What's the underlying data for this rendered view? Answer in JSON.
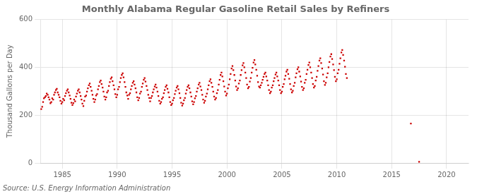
{
  "chart_data": {
    "type": "scatter",
    "title": "Monthly Alabama Regular Gasoline Retail Sales by Refiners",
    "ylabel": "Thousand Gallons per Day",
    "source": "Source: U.S. Energy Information Administration",
    "color": "#cc0000",
    "marker": "square",
    "grid": true,
    "xlim": [
      1983.0,
      2022.0
    ],
    "ylim": [
      0,
      600
    ],
    "xticks": [
      1985,
      1990,
      1995,
      2000,
      2005,
      2010,
      2015,
      2020
    ],
    "yticks": [
      0,
      200,
      400,
      600
    ],
    "x": [
      1983.08,
      1983.17,
      1983.25,
      1983.33,
      1983.42,
      1983.5,
      1983.58,
      1983.67,
      1983.75,
      1983.83,
      1983.92,
      1984.0,
      1984.08,
      1984.17,
      1984.25,
      1984.33,
      1984.42,
      1984.5,
      1984.58,
      1984.67,
      1984.75,
      1984.83,
      1984.92,
      1985.0,
      1985.08,
      1985.17,
      1985.25,
      1985.33,
      1985.42,
      1985.5,
      1985.58,
      1985.67,
      1985.75,
      1985.83,
      1985.92,
      1986.0,
      1986.08,
      1986.17,
      1986.25,
      1986.33,
      1986.42,
      1986.5,
      1986.58,
      1986.67,
      1986.75,
      1986.83,
      1986.92,
      1987.0,
      1987.08,
      1987.17,
      1987.25,
      1987.33,
      1987.42,
      1987.5,
      1987.58,
      1987.67,
      1987.75,
      1987.83,
      1987.92,
      1988.0,
      1988.08,
      1988.17,
      1988.25,
      1988.33,
      1988.42,
      1988.5,
      1988.58,
      1988.67,
      1988.75,
      1988.83,
      1988.92,
      1989.0,
      1989.08,
      1989.17,
      1989.25,
      1989.33,
      1989.42,
      1989.5,
      1989.58,
      1989.67,
      1989.75,
      1989.83,
      1989.92,
      1990.0,
      1990.08,
      1990.17,
      1990.25,
      1990.33,
      1990.42,
      1990.5,
      1990.58,
      1990.67,
      1990.75,
      1990.83,
      1990.92,
      1991.0,
      1991.08,
      1991.17,
      1991.25,
      1991.33,
      1991.42,
      1991.5,
      1991.58,
      1991.67,
      1991.75,
      1991.83,
      1991.92,
      1992.0,
      1992.08,
      1992.17,
      1992.25,
      1992.33,
      1992.42,
      1992.5,
      1992.58,
      1992.67,
      1992.75,
      1992.83,
      1992.92,
      1993.0,
      1993.08,
      1993.17,
      1993.25,
      1993.33,
      1993.42,
      1993.5,
      1993.58,
      1993.67,
      1993.75,
      1993.83,
      1993.92,
      1994.0,
      1994.08,
      1994.17,
      1994.25,
      1994.33,
      1994.42,
      1994.5,
      1994.58,
      1994.67,
      1994.75,
      1994.83,
      1994.92,
      1995.0,
      1995.08,
      1995.17,
      1995.25,
      1995.33,
      1995.42,
      1995.5,
      1995.58,
      1995.67,
      1995.75,
      1995.83,
      1995.92,
      1996.0,
      1996.08,
      1996.17,
      1996.25,
      1996.33,
      1996.42,
      1996.5,
      1996.58,
      1996.67,
      1996.75,
      1996.83,
      1996.92,
      1997.0,
      1997.08,
      1997.17,
      1997.25,
      1997.33,
      1997.42,
      1997.5,
      1997.58,
      1997.67,
      1997.75,
      1997.83,
      1997.92,
      1998.0,
      1998.08,
      1998.17,
      1998.25,
      1998.33,
      1998.42,
      1998.5,
      1998.58,
      1998.67,
      1998.75,
      1998.83,
      1998.92,
      1999.0,
      1999.08,
      1999.17,
      1999.25,
      1999.33,
      1999.42,
      1999.5,
      1999.58,
      1999.67,
      1999.75,
      1999.83,
      1999.92,
      2000.0,
      2000.08,
      2000.17,
      2000.25,
      2000.33,
      2000.42,
      2000.5,
      2000.58,
      2000.67,
      2000.75,
      2000.83,
      2000.92,
      2001.0,
      2001.08,
      2001.17,
      2001.25,
      2001.33,
      2001.42,
      2001.5,
      2001.58,
      2001.67,
      2001.75,
      2001.83,
      2001.92,
      2002.0,
      2002.08,
      2002.17,
      2002.25,
      2002.33,
      2002.42,
      2002.5,
      2002.58,
      2002.67,
      2002.75,
      2002.83,
      2002.92,
      2003.0,
      2003.08,
      2003.17,
      2003.25,
      2003.33,
      2003.42,
      2003.5,
      2003.58,
      2003.67,
      2003.75,
      2003.83,
      2003.92,
      2004.0,
      2004.08,
      2004.17,
      2004.25,
      2004.33,
      2004.42,
      2004.5,
      2004.58,
      2004.67,
      2004.75,
      2004.83,
      2004.92,
      2005.0,
      2005.08,
      2005.17,
      2005.25,
      2005.33,
      2005.42,
      2005.5,
      2005.58,
      2005.67,
      2005.75,
      2005.83,
      2005.92,
      2006.0,
      2006.08,
      2006.17,
      2006.25,
      2006.33,
      2006.42,
      2006.5,
      2006.58,
      2006.67,
      2006.75,
      2006.83,
      2006.92,
      2007.0,
      2007.08,
      2007.17,
      2007.25,
      2007.33,
      2007.42,
      2007.5,
      2007.58,
      2007.67,
      2007.75,
      2007.83,
      2007.92,
      2008.0,
      2008.08,
      2008.17,
      2008.25,
      2008.33,
      2008.42,
      2008.5,
      2008.58,
      2008.67,
      2008.75,
      2008.83,
      2008.92,
      2009.0,
      2009.08,
      2009.17,
      2009.25,
      2009.33,
      2009.42,
      2009.5,
      2009.58,
      2009.67,
      2009.75,
      2009.83,
      2009.92,
      2010.0,
      2010.08,
      2010.17,
      2010.25,
      2010.33,
      2010.42,
      2010.5,
      2010.58,
      2010.67,
      2010.75,
      2010.83,
      2010.92,
      2016.75,
      2017.5
    ],
    "values": [
      225,
      235,
      255,
      270,
      275,
      280,
      290,
      285,
      275,
      265,
      250,
      255,
      270,
      265,
      285,
      295,
      305,
      310,
      295,
      285,
      275,
      260,
      248,
      255,
      268,
      262,
      280,
      292,
      302,
      308,
      295,
      282,
      268,
      252,
      242,
      250,
      265,
      258,
      278,
      290,
      302,
      308,
      295,
      280,
      265,
      248,
      238,
      260,
      278,
      282,
      298,
      312,
      325,
      332,
      318,
      302,
      285,
      268,
      255,
      265,
      282,
      288,
      308,
      322,
      338,
      345,
      330,
      315,
      298,
      278,
      265,
      275,
      295,
      302,
      322,
      338,
      352,
      358,
      342,
      325,
      308,
      288,
      275,
      285,
      308,
      318,
      338,
      355,
      368,
      375,
      358,
      338,
      318,
      295,
      282,
      268,
      285,
      292,
      308,
      322,
      335,
      342,
      328,
      312,
      295,
      275,
      262,
      272,
      290,
      298,
      318,
      332,
      348,
      355,
      340,
      322,
      305,
      285,
      272,
      258,
      272,
      280,
      295,
      308,
      320,
      328,
      315,
      298,
      280,
      260,
      248,
      255,
      268,
      275,
      292,
      305,
      318,
      325,
      310,
      295,
      275,
      255,
      242,
      248,
      262,
      272,
      288,
      302,
      315,
      322,
      308,
      292,
      272,
      252,
      240,
      248,
      262,
      272,
      290,
      305,
      318,
      325,
      312,
      295,
      278,
      258,
      245,
      255,
      270,
      280,
      298,
      312,
      328,
      335,
      320,
      305,
      285,
      265,
      252,
      260,
      278,
      290,
      308,
      325,
      342,
      350,
      335,
      318,
      298,
      278,
      265,
      272,
      292,
      305,
      328,
      348,
      368,
      378,
      362,
      342,
      320,
      298,
      282,
      290,
      312,
      328,
      350,
      372,
      395,
      405,
      388,
      368,
      345,
      320,
      305,
      312,
      332,
      345,
      368,
      388,
      408,
      418,
      400,
      378,
      355,
      328,
      312,
      318,
      340,
      355,
      378,
      398,
      420,
      430,
      412,
      390,
      365,
      338,
      320,
      315,
      325,
      335,
      348,
      360,
      372,
      378,
      362,
      345,
      325,
      305,
      292,
      298,
      315,
      325,
      342,
      355,
      370,
      378,
      362,
      345,
      325,
      305,
      292,
      298,
      318,
      330,
      350,
      365,
      382,
      390,
      372,
      352,
      330,
      308,
      295,
      302,
      322,
      335,
      358,
      375,
      392,
      400,
      382,
      362,
      340,
      318,
      305,
      312,
      335,
      348,
      372,
      390,
      410,
      420,
      400,
      378,
      355,
      330,
      315,
      322,
      345,
      360,
      385,
      405,
      428,
      438,
      418,
      395,
      370,
      342,
      326,
      335,
      358,
      375,
      400,
      422,
      445,
      455,
      435,
      412,
      388,
      360,
      342,
      350,
      375,
      390,
      415,
      438,
      462,
      472,
      452,
      428,
      402,
      372,
      355,
      165,
      5
    ]
  }
}
